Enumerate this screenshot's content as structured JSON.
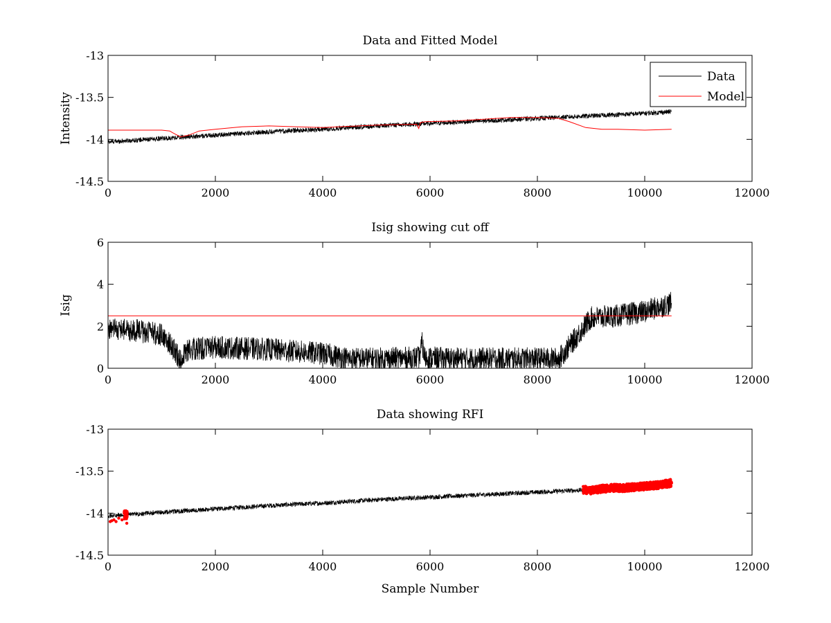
{
  "chart_data": [
    {
      "type": "line",
      "title": "Data and Fitted Model",
      "xlabel": "",
      "ylabel": "Intensity",
      "xlim": [
        0,
        12000
      ],
      "ylim": [
        -14.5,
        -13
      ],
      "xticks": [
        0,
        2000,
        4000,
        6000,
        8000,
        10000,
        12000
      ],
      "yticks": [
        -13,
        -13.5,
        -14,
        -14.5
      ],
      "xtick_labels": [
        "0",
        "2000",
        "4000",
        "6000",
        "8000",
        "10000",
        "12000"
      ],
      "ytick_labels": [
        "-13",
        "-13.5",
        "-14",
        "-14.5"
      ],
      "legend": {
        "position": "top-right",
        "entries": [
          "Data",
          "Model"
        ]
      },
      "series": [
        {
          "name": "Data",
          "color": "#000000",
          "style": "noisy-line",
          "noise": 0.028,
          "x": [
            0,
            1000,
            2000,
            3000,
            4000,
            5000,
            6000,
            7000,
            8000,
            9000,
            10000,
            10500
          ],
          "y": [
            -14.03,
            -13.99,
            -13.95,
            -13.91,
            -13.88,
            -13.84,
            -13.81,
            -13.78,
            -13.75,
            -13.72,
            -13.69,
            -13.67
          ]
        },
        {
          "name": "Model",
          "color": "#ff0000",
          "style": "line",
          "x": [
            0,
            1000,
            1150,
            1200,
            1350,
            1500,
            1700,
            2000,
            2500,
            3000,
            3500,
            4000,
            5000,
            5750,
            5790,
            5820,
            5900,
            6500,
            7000,
            7500,
            8000,
            8400,
            8600,
            8900,
            9200,
            9500,
            10000,
            10500
          ],
          "y": [
            -13.89,
            -13.89,
            -13.9,
            -13.92,
            -13.97,
            -13.95,
            -13.9,
            -13.88,
            -13.85,
            -13.84,
            -13.85,
            -13.86,
            -13.83,
            -13.82,
            -13.87,
            -13.8,
            -13.79,
            -13.78,
            -13.76,
            -13.74,
            -13.74,
            -13.75,
            -13.79,
            -13.86,
            -13.88,
            -13.88,
            -13.89,
            -13.88
          ]
        }
      ]
    },
    {
      "type": "line",
      "title": "Isig showing cut off",
      "xlabel": "",
      "ylabel": "Isig",
      "xlim": [
        0,
        12000
      ],
      "ylim": [
        0,
        6
      ],
      "xticks": [
        0,
        2000,
        4000,
        6000,
        8000,
        10000,
        12000
      ],
      "yticks": [
        0,
        2,
        4,
        6
      ],
      "xtick_labels": [
        "0",
        "2000",
        "4000",
        "6000",
        "8000",
        "10000",
        "12000"
      ],
      "ytick_labels": [
        "0",
        "2",
        "4",
        "6"
      ],
      "series": [
        {
          "name": "Isig",
          "color": "#000000",
          "style": "noisy-line",
          "noise": 0.55,
          "x": [
            0,
            500,
            1000,
            1200,
            1350,
            1500,
            2000,
            3000,
            4000,
            4500,
            5000,
            5800,
            5850,
            5900,
            6500,
            7000,
            8000,
            8400,
            8700,
            9000,
            9500,
            10000,
            10500
          ],
          "y": [
            1.9,
            1.8,
            1.6,
            1.0,
            0.4,
            0.9,
            1.0,
            0.9,
            0.7,
            0.45,
            0.45,
            0.5,
            1.2,
            0.5,
            0.45,
            0.45,
            0.45,
            0.45,
            1.4,
            2.4,
            2.5,
            2.7,
            3.1
          ]
        },
        {
          "name": "Cut off",
          "color": "#ff0000",
          "style": "line",
          "x": [
            0,
            10500
          ],
          "y": [
            2.5,
            2.5
          ]
        }
      ]
    },
    {
      "type": "line",
      "title": "Data showing RFI",
      "xlabel": "Sample Number",
      "ylabel": "",
      "xlim": [
        0,
        12000
      ],
      "ylim": [
        -14.5,
        -13
      ],
      "xticks": [
        0,
        2000,
        4000,
        6000,
        8000,
        10000,
        12000
      ],
      "yticks": [
        -13,
        -13.5,
        -14,
        -14.5
      ],
      "xtick_labels": [
        "0",
        "2000",
        "4000",
        "6000",
        "8000",
        "10000",
        "12000"
      ],
      "ytick_labels": [
        "-13",
        "-13.5",
        "-14",
        "-14.5"
      ],
      "series": [
        {
          "name": "Data",
          "color": "#000000",
          "style": "noisy-line",
          "noise": 0.028,
          "x": [
            0,
            1000,
            2000,
            3000,
            4000,
            5000,
            6000,
            7000,
            8000,
            9000,
            10000,
            10500
          ],
          "y": [
            -14.03,
            -13.99,
            -13.95,
            -13.91,
            -13.88,
            -13.84,
            -13.81,
            -13.78,
            -13.75,
            -13.72,
            -13.69,
            -13.67
          ]
        },
        {
          "name": "RFI",
          "color": "#ff0000",
          "style": "markers",
          "x": [
            40,
            70,
            110,
            150,
            200,
            260,
            300,
            320,
            340,
            350,
            8850,
            9000,
            9200,
            9400,
            9600,
            9800,
            10000,
            10200,
            10400,
            10500
          ],
          "y": [
            -14.1,
            -14.09,
            -14.08,
            -14.1,
            -14.06,
            -14.08,
            -14.0,
            -14.02,
            -13.98,
            -14.12,
            -13.72,
            -13.73,
            -13.71,
            -13.7,
            -13.7,
            -13.69,
            -13.68,
            -13.67,
            -13.65,
            -13.64
          ]
        }
      ]
    }
  ]
}
